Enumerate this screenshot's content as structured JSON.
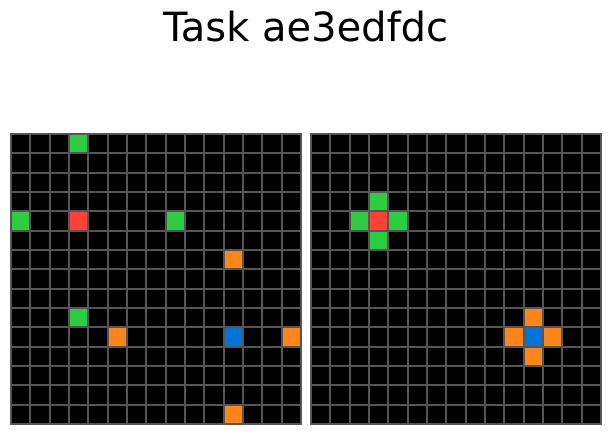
{
  "title": "Task ae3edfdc",
  "palette": {
    "0": "#000000",
    "1": "#0074D9",
    "2": "#FF4136",
    "3": "#2ECC40",
    "7": "#FF851B"
  },
  "grids": [
    {
      "name": "input",
      "rows": [
        [
          0,
          0,
          0,
          3,
          0,
          0,
          0,
          0,
          0,
          0,
          0,
          0,
          0,
          0,
          0
        ],
        [
          0,
          0,
          0,
          0,
          0,
          0,
          0,
          0,
          0,
          0,
          0,
          0,
          0,
          0,
          0
        ],
        [
          0,
          0,
          0,
          0,
          0,
          0,
          0,
          0,
          0,
          0,
          0,
          0,
          0,
          0,
          0
        ],
        [
          0,
          0,
          0,
          0,
          0,
          0,
          0,
          0,
          0,
          0,
          0,
          0,
          0,
          0,
          0
        ],
        [
          3,
          0,
          0,
          2,
          0,
          0,
          0,
          0,
          3,
          0,
          0,
          0,
          0,
          0,
          0
        ],
        [
          0,
          0,
          0,
          0,
          0,
          0,
          0,
          0,
          0,
          0,
          0,
          0,
          0,
          0,
          0
        ],
        [
          0,
          0,
          0,
          0,
          0,
          0,
          0,
          0,
          0,
          0,
          0,
          7,
          0,
          0,
          0
        ],
        [
          0,
          0,
          0,
          0,
          0,
          0,
          0,
          0,
          0,
          0,
          0,
          0,
          0,
          0,
          0
        ],
        [
          0,
          0,
          0,
          0,
          0,
          0,
          0,
          0,
          0,
          0,
          0,
          0,
          0,
          0,
          0
        ],
        [
          0,
          0,
          0,
          3,
          0,
          0,
          0,
          0,
          0,
          0,
          0,
          0,
          0,
          0,
          0
        ],
        [
          0,
          0,
          0,
          0,
          0,
          7,
          0,
          0,
          0,
          0,
          0,
          1,
          0,
          0,
          7
        ],
        [
          0,
          0,
          0,
          0,
          0,
          0,
          0,
          0,
          0,
          0,
          0,
          0,
          0,
          0,
          0
        ],
        [
          0,
          0,
          0,
          0,
          0,
          0,
          0,
          0,
          0,
          0,
          0,
          0,
          0,
          0,
          0
        ],
        [
          0,
          0,
          0,
          0,
          0,
          0,
          0,
          0,
          0,
          0,
          0,
          0,
          0,
          0,
          0
        ],
        [
          0,
          0,
          0,
          0,
          0,
          0,
          0,
          0,
          0,
          0,
          0,
          7,
          0,
          0,
          0
        ]
      ]
    },
    {
      "name": "output",
      "rows": [
        [
          0,
          0,
          0,
          0,
          0,
          0,
          0,
          0,
          0,
          0,
          0,
          0,
          0,
          0,
          0
        ],
        [
          0,
          0,
          0,
          0,
          0,
          0,
          0,
          0,
          0,
          0,
          0,
          0,
          0,
          0,
          0
        ],
        [
          0,
          0,
          0,
          0,
          0,
          0,
          0,
          0,
          0,
          0,
          0,
          0,
          0,
          0,
          0
        ],
        [
          0,
          0,
          0,
          3,
          0,
          0,
          0,
          0,
          0,
          0,
          0,
          0,
          0,
          0,
          0
        ],
        [
          0,
          0,
          3,
          2,
          3,
          0,
          0,
          0,
          0,
          0,
          0,
          0,
          0,
          0,
          0
        ],
        [
          0,
          0,
          0,
          3,
          0,
          0,
          0,
          0,
          0,
          0,
          0,
          0,
          0,
          0,
          0
        ],
        [
          0,
          0,
          0,
          0,
          0,
          0,
          0,
          0,
          0,
          0,
          0,
          0,
          0,
          0,
          0
        ],
        [
          0,
          0,
          0,
          0,
          0,
          0,
          0,
          0,
          0,
          0,
          0,
          0,
          0,
          0,
          0
        ],
        [
          0,
          0,
          0,
          0,
          0,
          0,
          0,
          0,
          0,
          0,
          0,
          0,
          0,
          0,
          0
        ],
        [
          0,
          0,
          0,
          0,
          0,
          0,
          0,
          0,
          0,
          0,
          0,
          7,
          0,
          0,
          0
        ],
        [
          0,
          0,
          0,
          0,
          0,
          0,
          0,
          0,
          0,
          0,
          7,
          1,
          7,
          0,
          0
        ],
        [
          0,
          0,
          0,
          0,
          0,
          0,
          0,
          0,
          0,
          0,
          0,
          7,
          0,
          0,
          0
        ],
        [
          0,
          0,
          0,
          0,
          0,
          0,
          0,
          0,
          0,
          0,
          0,
          0,
          0,
          0,
          0
        ],
        [
          0,
          0,
          0,
          0,
          0,
          0,
          0,
          0,
          0,
          0,
          0,
          0,
          0,
          0,
          0
        ],
        [
          0,
          0,
          0,
          0,
          0,
          0,
          0,
          0,
          0,
          0,
          0,
          0,
          0,
          0,
          0
        ]
      ]
    }
  ]
}
